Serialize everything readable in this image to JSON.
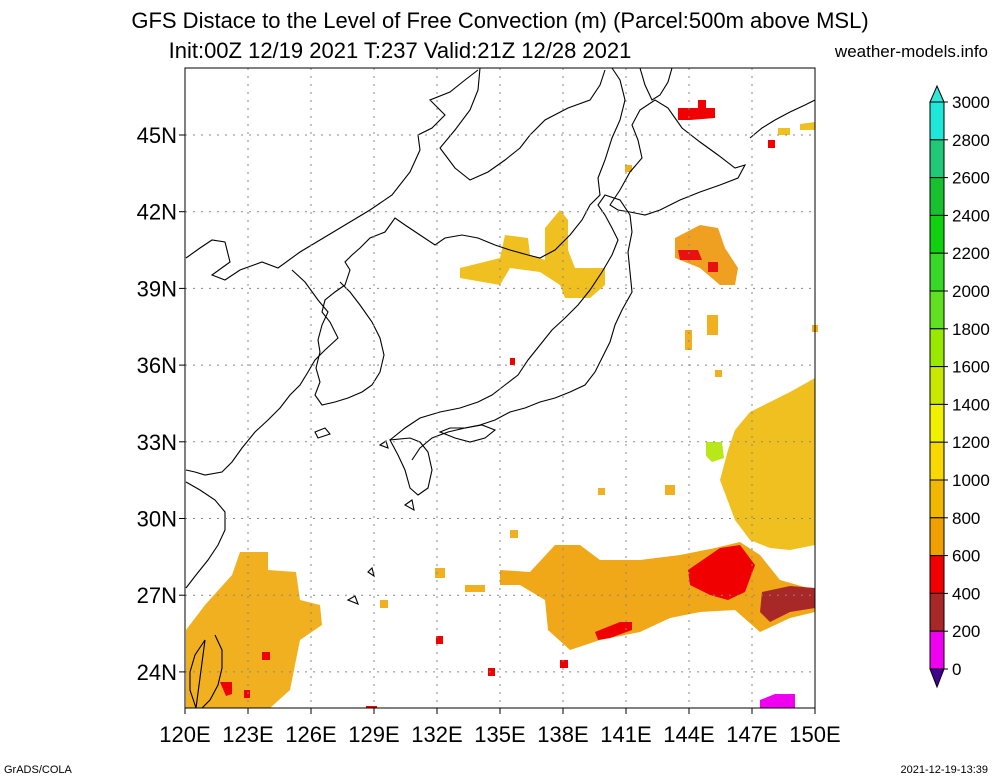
{
  "header": {
    "title_line1": "GFS Distace to the Level of Free Convection (m) (Parcel:500m above MSL)",
    "title_line2": "Init:00Z 12/19 2021 T:237 Valid:21Z 12/28 2021",
    "site": "weather-models.info"
  },
  "axes": {
    "lon_labels": [
      "120E",
      "123E",
      "126E",
      "129E",
      "132E",
      "135E",
      "138E",
      "141E",
      "144E",
      "147E",
      "150E"
    ],
    "lat_labels": [
      "45N",
      "42N",
      "39N",
      "36N",
      "33N",
      "30N",
      "27N",
      "24N"
    ]
  },
  "colorbar": {
    "labels": [
      "3000",
      "2800",
      "2600",
      "2400",
      "2200",
      "2000",
      "1800",
      "1600",
      "1400",
      "1200",
      "1000",
      "800",
      "600",
      "400",
      "200",
      "0"
    ],
    "colors": [
      "#20e8d8",
      "#20c878",
      "#18c030",
      "#10d010",
      "#38d828",
      "#60e020",
      "#98e800",
      "#c8e800",
      "#f0f000",
      "#f8d800",
      "#f0b800",
      "#f0a000",
      "#f00000",
      "#a82828",
      "#f000f0",
      "#4a0090"
    ],
    "top_arrow_color": "#30e8d8",
    "bottom_arrow_color": "#400090"
  },
  "footer": {
    "left": "GrADS/COLA",
    "right": "2021-12-19-13:39"
  }
}
